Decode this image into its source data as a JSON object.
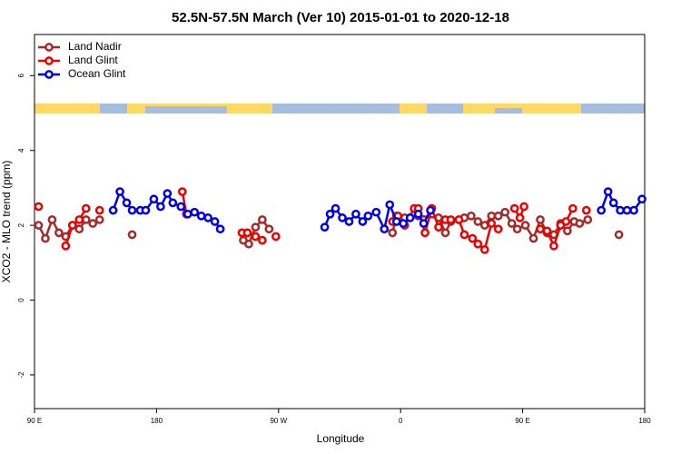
{
  "chart_data": {
    "type": "line",
    "title": "52.5N-57.5N March (Ver 10)   2015-01-01 to 2020-12-18",
    "x_label": "Longitude",
    "y_label": "XCO2 - MLO trend (ppm)",
    "xlim": [
      90,
      540
    ],
    "ylim": [
      -2.9,
      7.1
    ],
    "xticks": [
      {
        "value": 90,
        "label": "90 E"
      },
      180,
      {
        "value": 270,
        "label": "90 W"
      },
      {
        "value": 360,
        "label": "0"
      },
      {
        "value": 450,
        "label": "90 E"
      },
      {
        "value": 540,
        "label": "180"
      }
    ],
    "yticks": [
      -2,
      0,
      2,
      4,
      6
    ],
    "legend": "top-left",
    "series": [
      {
        "name": "Land Nadir",
        "color": "#a52a2a",
        "x": [
          93,
          98,
          103,
          108,
          113,
          118,
          123,
          128,
          133,
          138,
          150,
          162,
          200,
          244,
          248,
          253,
          258,
          263,
          300,
          354,
          357,
          363,
          373,
          388,
          393,
          397,
          403,
          407,
          412,
          417,
          422,
          427,
          432,
          437,
          442,
          446,
          452,
          458,
          463,
          468,
          473,
          478,
          483,
          488,
          492,
          498,
          510,
          521
        ],
        "values": [
          2.0,
          1.65,
          2.15,
          1.8,
          1.7,
          2.0,
          1.9,
          2.15,
          2.05,
          2.15,
          null,
          1.75,
          null,
          1.6,
          1.5,
          1.95,
          2.15,
          1.9,
          null,
          1.8,
          2.25,
          2.2,
          2.25,
          2.2,
          1.8,
          2.1,
          2.15,
          2.2,
          2.25,
          2.1,
          2.0,
          2.25,
          2.25,
          2.35,
          2.05,
          1.9,
          2.0,
          1.65,
          2.15,
          1.8,
          1.75,
          2.05,
          1.85,
          2.1,
          2.05,
          2.15,
          null,
          1.75
        ]
      },
      {
        "name": "Land Glint",
        "color": "#ee0000",
        "x": [
          93,
          100,
          113,
          118,
          123,
          128,
          133,
          138,
          170,
          199,
          202,
          220,
          243,
          247,
          253,
          258,
          263,
          268,
          300,
          354,
          358,
          363,
          370,
          373,
          378,
          383,
          388,
          393,
          397,
          403,
          407,
          413,
          417,
          422,
          427,
          432,
          438,
          444,
          448,
          451,
          457,
          463,
          468,
          473,
          478,
          482,
          487,
          492,
          497
        ],
        "values": [
          2.5,
          null,
          1.45,
          2.0,
          2.15,
          2.45,
          null,
          2.4,
          null,
          2.9,
          2.3,
          null,
          1.8,
          1.8,
          1.7,
          1.6,
          null,
          1.7,
          null,
          2.1,
          2.25,
          2.0,
          2.45,
          2.45,
          1.8,
          2.45,
          1.95,
          2.15,
          2.15,
          2.15,
          1.75,
          1.65,
          1.5,
          1.35,
          2.05,
          1.9,
          null,
          2.45,
          2.2,
          2.5,
          null,
          1.9,
          1.85,
          1.45,
          2.0,
          2.1,
          2.45,
          null,
          2.4
        ]
      },
      {
        "name": "Ocean Glint",
        "color": "#0000ee",
        "x": [
          148,
          153,
          158,
          162,
          168,
          172,
          178,
          183,
          188,
          192,
          198,
          203,
          208,
          213,
          218,
          223,
          227,
          260,
          304,
          308,
          312,
          317,
          322,
          327,
          332,
          336,
          342,
          348,
          352,
          357,
          362,
          367,
          373,
          377,
          382,
          450,
          508,
          513,
          517,
          522,
          527,
          532,
          538
        ],
        "values": [
          2.4,
          2.9,
          2.6,
          2.4,
          2.4,
          2.4,
          2.7,
          2.5,
          2.85,
          2.6,
          2.5,
          2.3,
          2.35,
          2.25,
          2.2,
          2.1,
          1.9,
          null,
          1.95,
          2.3,
          2.45,
          2.2,
          2.1,
          2.3,
          2.1,
          2.25,
          2.35,
          1.9,
          2.55,
          2.1,
          2.05,
          2.2,
          2.3,
          2.05,
          2.4,
          null,
          2.4,
          2.9,
          2.6,
          2.4,
          2.4,
          2.4,
          2.7
        ]
      }
    ]
  }
}
